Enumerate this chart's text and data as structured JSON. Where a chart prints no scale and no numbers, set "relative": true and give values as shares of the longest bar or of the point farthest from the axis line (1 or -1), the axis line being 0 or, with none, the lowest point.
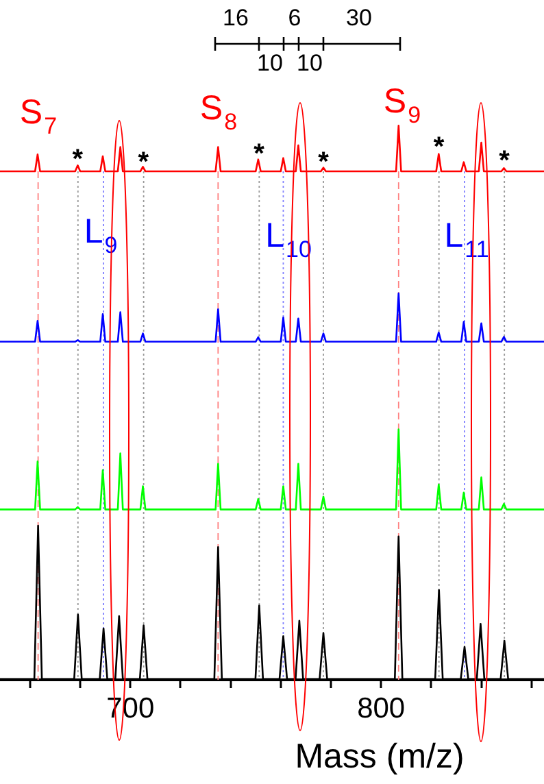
{
  "chart_data": [
    {
      "type": "line",
      "relative": true,
      "tick_labels": false,
      "categories": [
        null,
        null,
        null,
        null,
        null,
        null,
        null,
        null,
        null,
        null,
        null,
        null,
        null,
        null,
        null,
        null,
        null,
        null,
        null,
        null,
        null,
        null,
        null,
        null,
        null,
        null,
        null,
        null,
        null,
        null,
        null,
        null,
        null,
        null,
        null,
        null,
        null,
        null,
        null,
        null,
        null,
        null,
        null,
        null,
        null,
        null,
        null,
        null,
        null,
        null,
        null,
        null,
        null,
        null,
        null,
        null,
        null,
        null,
        null,
        null,
        null,
        null,
        null,
        null,
        null,
        null,
        null,
        null,
        null,
        null,
        null,
        null,
        null,
        null,
        null,
        null,
        null,
        null,
        null,
        null,
        null,
        null,
        null,
        null,
        null,
        null,
        null,
        null,
        null,
        null,
        null,
        null,
        null,
        null,
        null,
        null,
        null,
        null,
        null,
        null,
        null,
        null,
        null,
        null,
        null,
        null,
        null,
        null,
        null,
        null,
        null,
        null,
        null,
        null,
        null,
        null,
        null,
        null,
        null,
        null,
        null,
        null,
        null,
        null,
        null,
        null,
        null,
        null,
        null,
        null,
        null,
        null,
        null,
        null,
        null,
        null,
        null,
        null,
        null,
        null,
        null,
        null,
        null,
        null,
        null,
        null,
        null,
        null,
        null,
        null,
        null,
        null,
        null,
        null,
        null,
        null,
        null,
        null,
        null,
        null,
        null,
        null,
        null,
        null,
        null,
        null,
        null,
        null,
        null,
        null,
        null,
        null,
        null,
        null,
        null,
        null,
        null,
        null,
        null,
        null,
        null,
        null,
        null,
        null,
        null,
        null,
        null,
        null,
        null,
        null,
        null,
        null,
        null,
        null,
        null,
        null,
        null,
        null,
        null,
        null,
        null,
        null,
        null,
        null,
        null,
        null,
        null,
        null,
        null,
        null,
        null,
        null,
        null,
        null,
        null,
        null,
        null,
        null
      ],
      "series": [
        {
          "color": "#ff0000",
          "values": [
            0,
            0,
            0,
            0,
            0,
            0,
            0,
            0,
            0,
            0,
            0,
            0,
            0,
            0,
            0,
            0.37,
            0,
            0,
            0,
            0,
            0,
            0,
            0,
            0,
            0,
            0,
            0,
            0,
            0,
            0,
            0,
            0.13,
            0,
            0,
            0,
            0,
            0,
            0,
            0,
            0,
            0,
            0.33,
            0,
            0,
            0,
            0,
            0,
            0,
            0.53,
            0,
            0,
            0,
            0,
            0,
            0,
            0,
            0,
            0.1,
            0,
            0,
            0,
            0,
            0,
            0,
            0,
            0,
            0,
            0,
            0,
            0,
            0,
            0,
            0,
            0,
            0,
            0,
            0,
            0,
            0,
            0,
            0,
            0,
            0,
            0,
            0,
            0,
            0,
            0.53,
            0,
            0,
            0,
            0,
            0,
            0,
            0,
            0,
            0,
            0,
            0,
            0,
            0,
            0,
            0,
            0.26,
            0,
            0,
            0,
            0,
            0,
            0,
            0,
            0,
            0,
            0.29,
            0,
            0,
            0,
            0,
            0,
            0.57,
            0,
            0,
            0,
            0,
            0,
            0,
            0,
            0,
            0,
            0.08,
            0,
            0,
            0,
            0,
            0,
            0,
            0,
            0,
            0,
            0,
            0,
            0,
            0,
            0,
            0,
            0,
            0,
            0,
            0,
            0,
            0,
            0,
            0,
            0,
            0,
            0,
            0,
            0,
            0,
            1,
            0,
            0,
            0,
            0,
            0,
            0,
            0,
            0,
            0,
            0,
            0,
            0,
            0,
            0,
            0,
            0.38,
            0,
            0,
            0,
            0,
            0,
            0,
            0,
            0,
            0,
            0.2,
            0,
            0,
            0,
            0,
            0,
            0,
            0.63,
            0,
            0,
            0,
            0,
            0,
            0,
            0,
            0,
            0.07,
            0,
            0,
            0,
            0,
            0,
            0,
            0,
            0,
            0,
            0,
            0,
            0,
            0,
            0,
            0,
            0
          ]
        }
      ],
      "annotations": [
        "S$_{7}$",
        "S$_{8}$",
        "S$_{9}$",
        "*",
        "*",
        "*",
        "*",
        "*",
        "*",
        "16",
        "6",
        "30",
        "10",
        "10"
      ]
    },
    {
      "type": "line",
      "relative": true,
      "tick_labels": false,
      "categories": [
        null,
        null,
        null,
        null,
        null,
        null,
        null,
        null,
        null,
        null,
        null,
        null,
        null,
        null,
        null,
        null,
        null,
        null,
        null,
        null,
        null,
        null,
        null,
        null,
        null,
        null,
        null,
        null,
        null,
        null,
        null,
        null,
        null,
        null,
        null,
        null,
        null,
        null,
        null,
        null,
        null,
        null,
        null,
        null,
        null,
        null,
        null,
        null,
        null,
        null,
        null,
        null,
        null,
        null,
        null,
        null,
        null,
        null,
        null,
        null,
        null,
        null,
        null,
        null,
        null,
        null,
        null,
        null,
        null,
        null,
        null,
        null,
        null,
        null,
        null,
        null,
        null,
        null,
        null,
        null,
        null,
        null,
        null,
        null,
        null,
        null,
        null,
        null,
        null,
        null,
        null,
        null,
        null,
        null,
        null,
        null,
        null,
        null,
        null,
        null,
        null,
        null,
        null,
        null,
        null,
        null,
        null,
        null,
        null,
        null,
        null,
        null,
        null,
        null,
        null,
        null,
        null,
        null,
        null,
        null,
        null,
        null,
        null,
        null,
        null,
        null,
        null,
        null,
        null,
        null,
        null,
        null,
        null,
        null,
        null,
        null,
        null,
        null,
        null,
        null,
        null,
        null,
        null,
        null,
        null,
        null,
        null,
        null,
        null,
        null,
        null,
        null,
        null,
        null,
        null,
        null,
        null,
        null,
        null,
        null,
        null,
        null,
        null,
        null,
        null,
        null,
        null,
        null,
        null,
        null,
        null,
        null,
        null,
        null,
        null,
        null,
        null,
        null,
        null,
        null,
        null,
        null,
        null,
        null,
        null,
        null,
        null,
        null,
        null,
        null,
        null,
        null,
        null,
        null,
        null,
        null,
        null,
        null,
        null,
        null,
        null,
        null,
        null,
        null,
        null,
        null,
        null,
        null,
        null,
        null,
        null,
        null,
        null,
        null,
        null,
        null,
        null,
        null
      ],
      "series": [
        {
          "color": "#0000ff",
          "values": [
            0,
            0,
            0,
            0,
            0,
            0,
            0,
            0,
            0,
            0,
            0,
            0,
            0,
            0,
            0,
            0.43,
            0,
            0,
            0,
            0,
            0,
            0,
            0,
            0,
            0,
            0,
            0,
            0,
            0,
            0,
            0,
            0.03,
            0,
            0,
            0,
            0,
            0,
            0,
            0,
            0,
            0,
            0.57,
            0,
            0,
            0,
            0,
            0,
            0,
            0.61,
            0,
            0,
            0,
            0,
            0,
            0,
            0,
            0,
            0.17,
            0,
            0,
            0,
            0,
            0,
            0,
            0,
            0,
            0,
            0,
            0,
            0,
            0,
            0,
            0,
            0,
            0,
            0,
            0,
            0,
            0,
            0,
            0,
            0,
            0,
            0,
            0,
            0,
            0,
            0.67,
            0,
            0,
            0,
            0,
            0,
            0,
            0,
            0,
            0,
            0,
            0,
            0,
            0,
            0,
            0,
            0.09,
            0,
            0,
            0,
            0,
            0,
            0,
            0,
            0,
            0,
            0.5,
            0,
            0,
            0,
            0,
            0,
            0.48,
            0,
            0,
            0,
            0,
            0,
            0,
            0,
            0,
            0,
            0.17,
            0,
            0,
            0,
            0,
            0,
            0,
            0,
            0,
            0,
            0,
            0,
            0,
            0,
            0,
            0,
            0,
            0,
            0,
            0,
            0,
            0,
            0,
            0,
            0,
            0,
            0,
            0,
            0,
            0,
            1,
            0,
            0,
            0,
            0,
            0,
            0,
            0,
            0,
            0,
            0,
            0,
            0,
            0,
            0,
            0,
            0.19,
            0,
            0,
            0,
            0,
            0,
            0,
            0,
            0,
            0,
            0.41,
            0,
            0,
            0,
            0,
            0,
            0,
            0.38,
            0,
            0,
            0,
            0,
            0,
            0,
            0,
            0,
            0.1,
            0,
            0,
            0,
            0,
            0,
            0,
            0,
            0,
            0,
            0,
            0,
            0,
            0,
            0,
            0,
            0
          ]
        }
      ],
      "annotations": [
        "L$_{9}$",
        "L$_{10}$",
        "L$_{11}$"
      ]
    },
    {
      "type": "line",
      "relative": true,
      "tick_labels": false,
      "categories": [
        null,
        null,
        null,
        null,
        null,
        null,
        null,
        null,
        null,
        null,
        null,
        null,
        null,
        null,
        null,
        null,
        null,
        null,
        null,
        null,
        null,
        null,
        null,
        null,
        null,
        null,
        null,
        null,
        null,
        null,
        null,
        null,
        null,
        null,
        null,
        null,
        null,
        null,
        null,
        null,
        null,
        null,
        null,
        null,
        null,
        null,
        null,
        null,
        null,
        null,
        null,
        null,
        null,
        null,
        null,
        null,
        null,
        null,
        null,
        null,
        null,
        null,
        null,
        null,
        null,
        null,
        null,
        null,
        null,
        null,
        null,
        null,
        null,
        null,
        null,
        null,
        null,
        null,
        null,
        null,
        null,
        null,
        null,
        null,
        null,
        null,
        null,
        null,
        null,
        null,
        null,
        null,
        null,
        null,
        null,
        null,
        null,
        null,
        null,
        null,
        null,
        null,
        null,
        null,
        null,
        null,
        null,
        null,
        null,
        null,
        null,
        null,
        null,
        null,
        null,
        null,
        null,
        null,
        null,
        null,
        null,
        null,
        null,
        null,
        null,
        null,
        null,
        null,
        null,
        null,
        null,
        null,
        null,
        null,
        null,
        null,
        null,
        null,
        null,
        null,
        null,
        null,
        null,
        null,
        null,
        null,
        null,
        null,
        null,
        null,
        null,
        null,
        null,
        null,
        null,
        null,
        null,
        null,
        null,
        null,
        null,
        null,
        null,
        null,
        null,
        null,
        null,
        null,
        null,
        null,
        null,
        null,
        null,
        null,
        null,
        null,
        null,
        null,
        null,
        null,
        null,
        null,
        null,
        null,
        null,
        null,
        null,
        null,
        null,
        null,
        null,
        null,
        null,
        null,
        null,
        null,
        null,
        null,
        null,
        null,
        null,
        null,
        null,
        null,
        null,
        null,
        null,
        null,
        null,
        null,
        null,
        null,
        null,
        null,
        null,
        null,
        null,
        null
      ],
      "series": [
        {
          "color": "#00ff00",
          "values": [
            0,
            0,
            0,
            0,
            0,
            0,
            0,
            0,
            0,
            0,
            0,
            0,
            0,
            0,
            0,
            0.6,
            0,
            0,
            0,
            0,
            0,
            0,
            0,
            0,
            0,
            0,
            0,
            0,
            0,
            0,
            0,
            0.03,
            0,
            0,
            0,
            0,
            0,
            0,
            0,
            0,
            0,
            0.49,
            0,
            0,
            0,
            0,
            0,
            0,
            0.7,
            0,
            0,
            0,
            0,
            0,
            0,
            0,
            0,
            0.29,
            0,
            0,
            0,
            0,
            0,
            0,
            0,
            0,
            0,
            0,
            0,
            0,
            0,
            0,
            0,
            0,
            0,
            0,
            0,
            0,
            0,
            0,
            0,
            0,
            0,
            0,
            0,
            0,
            0,
            0.57,
            0,
            0,
            0,
            0,
            0,
            0,
            0,
            0,
            0,
            0,
            0,
            0,
            0,
            0,
            0,
            0.13,
            0,
            0,
            0,
            0,
            0,
            0,
            0,
            0,
            0,
            0.29,
            0,
            0,
            0,
            0,
            0,
            0.57,
            0,
            0,
            0,
            0,
            0,
            0,
            0,
            0,
            0,
            0.16,
            0,
            0,
            0,
            0,
            0,
            0,
            0,
            0,
            0,
            0,
            0,
            0,
            0,
            0,
            0,
            0,
            0,
            0,
            0,
            0,
            0,
            0,
            0,
            0,
            0,
            0,
            0,
            0,
            0,
            1,
            0,
            0,
            0,
            0,
            0,
            0,
            0,
            0,
            0,
            0,
            0,
            0,
            0,
            0,
            0,
            0.31,
            0,
            0,
            0,
            0,
            0,
            0,
            0,
            0,
            0,
            0.21,
            0,
            0,
            0,
            0,
            0,
            0,
            0.4,
            0,
            0,
            0,
            0,
            0,
            0,
            0,
            0,
            0.07,
            0,
            0,
            0,
            0,
            0,
            0,
            0,
            0,
            0,
            0,
            0,
            0,
            0,
            0,
            0,
            0
          ]
        }
      ]
    },
    {
      "type": "line",
      "relative": true,
      "tick_labels": "x",
      "xlim": [
        648,
        865
      ],
      "xlabel": "Mass (m/z)",
      "xticks": [
        {
          "value": 660,
          "label": null
        },
        {
          "value": 680,
          "label": null
        },
        700,
        {
          "value": 720,
          "label": null
        },
        {
          "value": 740,
          "label": null
        },
        {
          "value": 760,
          "label": null
        },
        {
          "value": 780,
          "label": null
        },
        800,
        {
          "value": 820,
          "label": null
        },
        {
          "value": 840,
          "label": null
        },
        {
          "value": 860,
          "label": null
        }
      ],
      "x": [
        648,
        661.7,
        663.2,
        664.7,
        677.6,
        679.1,
        680.6,
        687.8,
        689.3,
        690.8,
        694,
        695.5,
        697,
        703.8,
        705.3,
        706.8,
        733.5,
        735,
        736.5,
        749.9,
        751.4,
        752.9,
        759.5,
        761,
        762.5,
        765.9,
        767.4,
        768.9,
        775.5,
        777,
        778.5,
        805.5,
        807,
        808.5,
        821.6,
        823.1,
        824.6,
        831.8,
        833.3,
        834.8,
        838.2,
        839.7,
        841.2,
        847.7,
        849.2,
        850.7,
        865
      ],
      "series": [
        {
          "color": "#000000",
          "values": [
            0,
            0,
            1,
            0,
            0,
            0.42,
            0,
            0,
            0.33,
            0,
            0,
            0.41,
            0,
            0,
            0.35,
            0,
            0,
            0.86,
            0,
            0,
            0.48,
            0,
            0,
            0.28,
            0,
            0,
            0.38,
            0,
            0,
            0.3,
            0,
            0,
            0.93,
            0,
            0,
            0.58,
            0,
            0,
            0.21,
            0,
            0,
            0.36,
            0,
            0,
            0.25,
            0,
            0
          ]
        }
      ],
      "ref_lines": [
        {
          "axis": "x",
          "value": 663.2,
          "color": "#ff8080",
          "line_style": "dashed"
        },
        {
          "axis": "x",
          "value": 735,
          "color": "#ff8080",
          "line_style": "dashed"
        },
        {
          "axis": "x",
          "value": 807,
          "color": "#ff8080",
          "line_style": "dashed"
        },
        {
          "axis": "x",
          "value": 689.3,
          "color": "#8080ff",
          "line_style": "dotted"
        },
        {
          "axis": "x",
          "value": 761,
          "color": "#8080ff",
          "line_style": "dotted"
        },
        {
          "axis": "x",
          "value": 833.3,
          "color": "#8080ff",
          "line_style": "dotted"
        },
        {
          "axis": "x",
          "value": 679.1,
          "color": "#999999",
          "line_style": "dotted"
        },
        {
          "axis": "x",
          "value": 705.3,
          "color": "#999999",
          "line_style": "dotted"
        },
        {
          "axis": "x",
          "value": 751.4,
          "color": "#999999",
          "line_style": "dotted"
        },
        {
          "axis": "x",
          "value": 777,
          "color": "#999999",
          "line_style": "dotted"
        },
        {
          "axis": "x",
          "value": 823.1,
          "color": "#999999",
          "line_style": "dotted"
        },
        {
          "axis": "x",
          "value": 849.2,
          "color": "#999999",
          "line_style": "dotted"
        }
      ]
    }
  ]
}
